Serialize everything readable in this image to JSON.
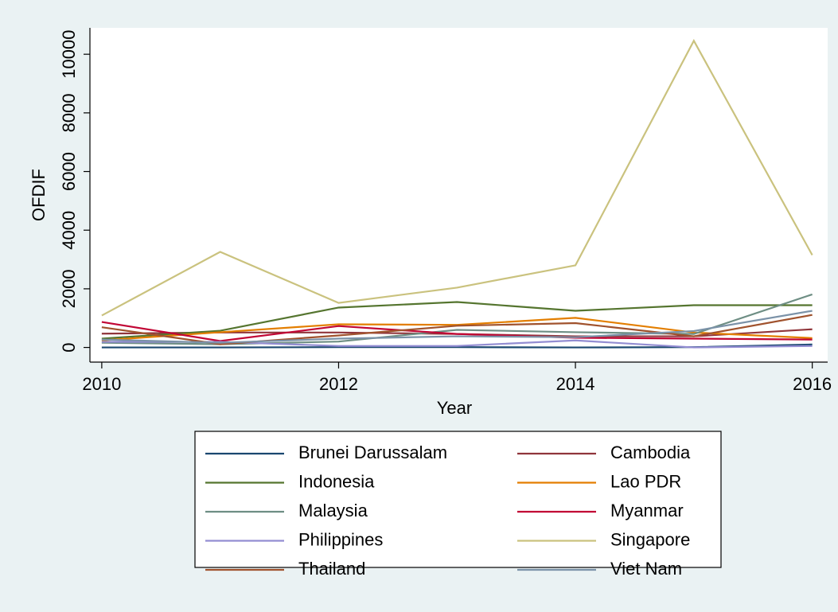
{
  "chart_data": {
    "type": "line",
    "x_label": "Year",
    "y_label": "OFDIF",
    "x": [
      2010,
      2011,
      2012,
      2013,
      2014,
      2015,
      2016
    ],
    "xlim": [
      2009.9,
      2016.13
    ],
    "xticks": [
      2010,
      2012,
      2014,
      2016
    ],
    "ylim": [
      -500,
      10900
    ],
    "yticks": [
      0,
      2000,
      4000,
      6000,
      8000,
      10000
    ],
    "grid": false,
    "legend_position": "bottom",
    "series": [
      {
        "name": "Brunei Darussalam",
        "color": "#1a476f",
        "values": [
          0,
          0,
          10,
          10,
          0,
          10,
          100
        ]
      },
      {
        "name": "Cambodia",
        "color": "#90353b",
        "values": [
          470,
          510,
          510,
          460,
          380,
          380,
          620
        ]
      },
      {
        "name": "Indonesia",
        "color": "#55752f",
        "values": [
          300,
          570,
          1360,
          1550,
          1250,
          1440,
          1440
        ]
      },
      {
        "name": "Lao PDR",
        "color": "#e37e00",
        "values": [
          240,
          520,
          790,
          770,
          1010,
          510,
          320
        ]
      },
      {
        "name": "Malaysia",
        "color": "#6e8e84",
        "values": [
          160,
          110,
          200,
          600,
          520,
          460,
          1810
        ]
      },
      {
        "name": "Myanmar",
        "color": "#c10534",
        "values": [
          870,
          220,
          730,
          460,
          330,
          300,
          270
        ]
      },
      {
        "name": "Philippines",
        "color": "#938dd2",
        "values": [
          190,
          190,
          50,
          50,
          240,
          0,
          50
        ]
      },
      {
        "name": "Singapore",
        "color": "#cac27e",
        "values": [
          1090,
          3260,
          1520,
          2040,
          2800,
          10460,
          3150
        ]
      },
      {
        "name": "Thailand",
        "color": "#a0522d",
        "values": [
          690,
          110,
          410,
          740,
          830,
          380,
          1110
        ]
      },
      {
        "name": "Viet Nam",
        "color": "#7b92a8",
        "values": [
          270,
          160,
          300,
          380,
          350,
          560,
          1250
        ]
      }
    ]
  }
}
